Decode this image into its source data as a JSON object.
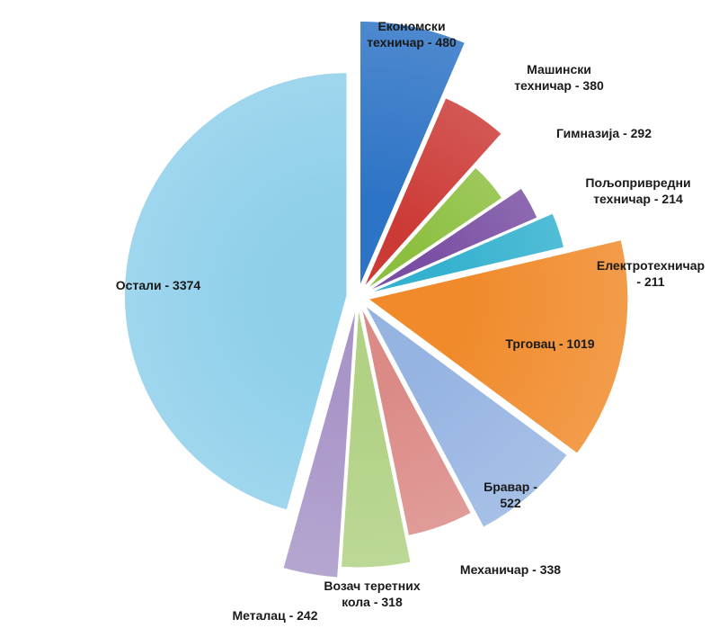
{
  "chart_data": {
    "type": "pie",
    "title": "",
    "exploded": true,
    "slices": [
      {
        "label": "Економски техничар - 480",
        "category": "Економски техничар",
        "value": 480,
        "color": "#2e74c6"
      },
      {
        "label": "Машински техничар - 380",
        "category": "Машински техничар",
        "value": 380,
        "color": "#cc3a36"
      },
      {
        "label": "Гимназија - 292",
        "category": "Гимназија",
        "value": 292,
        "color": "#8cbf3f"
      },
      {
        "label": "Пољопривредни техничар - 214",
        "category": "Пољопривредни техничар",
        "value": 214,
        "color": "#7a4fa3"
      },
      {
        "label": "Електротехничар - 211",
        "category": "Електротехничар",
        "value": 211,
        "color": "#33b1cf"
      },
      {
        "label": "Трговац - 1019",
        "category": "Трговац",
        "value": 1019,
        "color": "#f08a2a"
      },
      {
        "label": "Бравар - 522",
        "category": "Бравар",
        "value": 522,
        "color": "#96b4e2"
      },
      {
        "label": "Механичар - 338",
        "category": "Механичар",
        "value": 338,
        "color": "#db8a86"
      },
      {
        "label": "Возач теретних кола - 318",
        "category": "Возач теретних кола",
        "value": 318,
        "color": "#b1d184"
      },
      {
        "label": "Металац - 242",
        "category": "Металац",
        "value": 242,
        "color": "#a896c8"
      },
      {
        "label": "Остали - 3374",
        "category": "Остали",
        "value": 3374,
        "color": "#8ecfea"
      }
    ]
  }
}
